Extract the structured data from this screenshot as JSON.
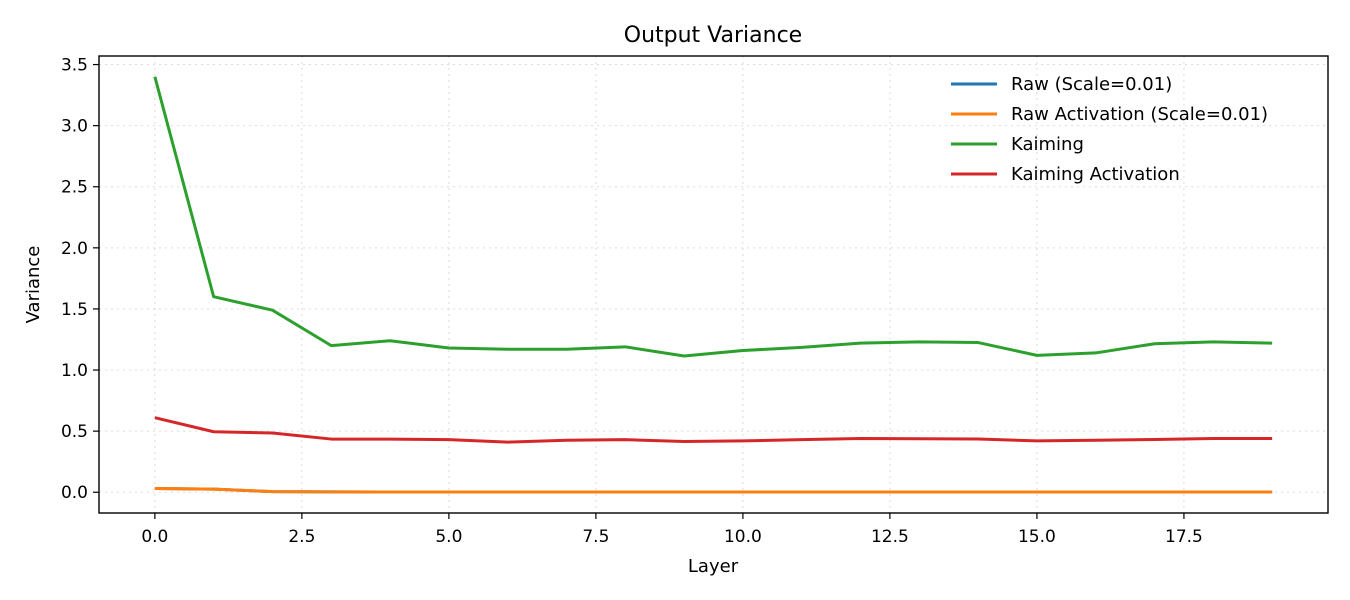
{
  "chart_data": {
    "type": "line",
    "title": "Output Variance",
    "xlabel": "Layer",
    "ylabel": "Variance",
    "xlim": [
      -0.95,
      19.95
    ],
    "ylim": [
      -0.17,
      3.57
    ],
    "xticks": [
      0.0,
      2.5,
      5.0,
      7.5,
      10.0,
      12.5,
      15.0,
      17.5
    ],
    "xtick_labels": [
      "0.0",
      "2.5",
      "5.0",
      "7.5",
      "10.0",
      "12.5",
      "15.0",
      "17.5"
    ],
    "yticks": [
      0.0,
      0.5,
      1.0,
      1.5,
      2.0,
      2.5,
      3.0,
      3.5
    ],
    "ytick_labels": [
      "0.0",
      "0.5",
      "1.0",
      "1.5",
      "2.0",
      "2.5",
      "3.0",
      "3.5"
    ],
    "grid": true,
    "legend_position": "top-right",
    "x": [
      0,
      1,
      2,
      3,
      4,
      5,
      6,
      7,
      8,
      9,
      10,
      11,
      12,
      13,
      14,
      15,
      16,
      17,
      18,
      19
    ],
    "series": [
      {
        "name": "Raw (Scale=0.01)",
        "color": "#1f77b4",
        "values": [
          0.03,
          0.025,
          0.005,
          0.003,
          0.002,
          0.002,
          0.002,
          0.002,
          0.002,
          0.002,
          0.002,
          0.002,
          0.002,
          0.002,
          0.002,
          0.002,
          0.002,
          0.002,
          0.002,
          0.002
        ]
      },
      {
        "name": "Raw Activation (Scale=0.01)",
        "color": "#ff7f0e",
        "values": [
          0.03,
          0.025,
          0.005,
          0.003,
          0.002,
          0.002,
          0.002,
          0.002,
          0.002,
          0.002,
          0.002,
          0.002,
          0.002,
          0.002,
          0.002,
          0.002,
          0.002,
          0.002,
          0.002,
          0.002
        ]
      },
      {
        "name": "Kaiming",
        "color": "#2ca02c",
        "values": [
          3.4,
          1.6,
          1.49,
          1.2,
          1.24,
          1.18,
          1.17,
          1.17,
          1.19,
          1.115,
          1.16,
          1.185,
          1.22,
          1.23,
          1.225,
          1.12,
          1.14,
          1.215,
          1.23,
          1.22
        ]
      },
      {
        "name": "Kaiming Activation",
        "color": "#d62728",
        "values": [
          0.61,
          0.495,
          0.485,
          0.435,
          0.435,
          0.43,
          0.41,
          0.425,
          0.43,
          0.415,
          0.42,
          0.43,
          0.44,
          0.438,
          0.436,
          0.42,
          0.425,
          0.432,
          0.44,
          0.44
        ]
      }
    ]
  }
}
